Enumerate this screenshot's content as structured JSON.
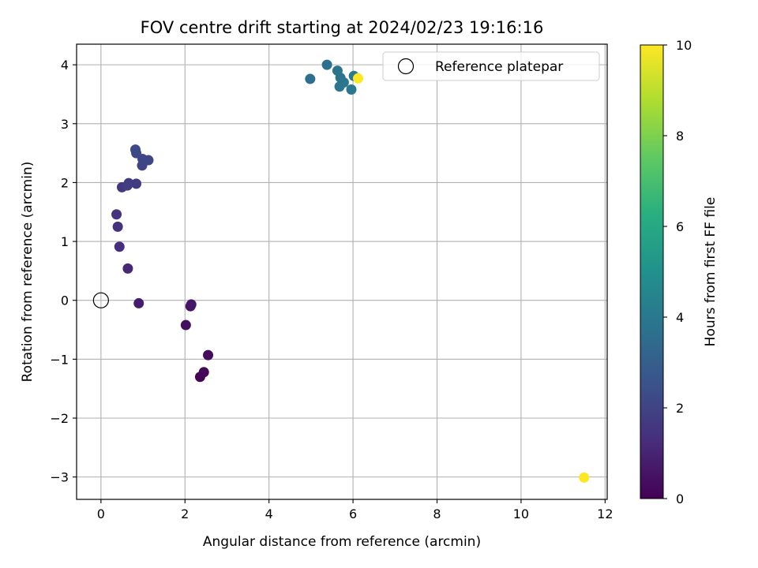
{
  "chart_data": {
    "type": "scatter",
    "title": "FOV centre drift starting at 2024/02/23 19:16:16",
    "xlabel": "Angular distance from reference (arcmin)",
    "ylabel": "Rotation from reference (arcmin)",
    "xlim": [
      -0.58,
      12.05
    ],
    "ylim": [
      -3.38,
      4.35
    ],
    "xticks": [
      "0",
      "2",
      "4",
      "6",
      "8",
      "10",
      "12"
    ],
    "xtick_values": [
      0,
      2,
      4,
      6,
      8,
      10,
      12
    ],
    "yticks": [
      "−3",
      "−2",
      "−1",
      "0",
      "1",
      "2",
      "3",
      "4"
    ],
    "ytick_values": [
      -3,
      -2,
      -1,
      0,
      1,
      2,
      3,
      4
    ],
    "grid": true,
    "legend": {
      "position": "top-right",
      "entries": [
        {
          "label": "Reference platepar",
          "marker": "open-circle"
        }
      ]
    },
    "reference_point": {
      "x": 0,
      "y": 0
    },
    "colorbar": {
      "label": "Hours from first FF file",
      "range": [
        0,
        10
      ],
      "ticks": [
        "0",
        "2",
        "4",
        "6",
        "8",
        "10"
      ],
      "tick_values": [
        0,
        2,
        4,
        6,
        8,
        10
      ],
      "colormap": "viridis"
    },
    "points": [
      {
        "x": 2.36,
        "y": -1.3,
        "hours": 0.1
      },
      {
        "x": 2.45,
        "y": -1.22,
        "hours": 0.2
      },
      {
        "x": 2.55,
        "y": -0.93,
        "hours": 0.3
      },
      {
        "x": 2.02,
        "y": -0.42,
        "hours": 0.4
      },
      {
        "x": 2.13,
        "y": -0.1,
        "hours": 0.5
      },
      {
        "x": 2.15,
        "y": -0.07,
        "hours": 0.6
      },
      {
        "x": 0.9,
        "y": -0.05,
        "hours": 0.8
      },
      {
        "x": 0.64,
        "y": 0.54,
        "hours": 1.1
      },
      {
        "x": 0.44,
        "y": 0.91,
        "hours": 1.3
      },
      {
        "x": 0.4,
        "y": 1.25,
        "hours": 1.4
      },
      {
        "x": 0.37,
        "y": 1.46,
        "hours": 1.5
      },
      {
        "x": 0.5,
        "y": 1.92,
        "hours": 1.6
      },
      {
        "x": 0.66,
        "y": 1.99,
        "hours": 1.7
      },
      {
        "x": 0.84,
        "y": 1.98,
        "hours": 1.8
      },
      {
        "x": 0.63,
        "y": 1.95,
        "hours": 1.8
      },
      {
        "x": 0.98,
        "y": 2.29,
        "hours": 2.0
      },
      {
        "x": 1.13,
        "y": 2.38,
        "hours": 2.1
      },
      {
        "x": 0.99,
        "y": 2.4,
        "hours": 2.1
      },
      {
        "x": 0.84,
        "y": 2.5,
        "hours": 2.2
      },
      {
        "x": 0.82,
        "y": 2.56,
        "hours": 2.2
      },
      {
        "x": 4.98,
        "y": 3.76,
        "hours": 3.6
      },
      {
        "x": 5.38,
        "y": 4.0,
        "hours": 3.7
      },
      {
        "x": 5.63,
        "y": 3.9,
        "hours": 3.8
      },
      {
        "x": 5.7,
        "y": 3.78,
        "hours": 3.8
      },
      {
        "x": 5.78,
        "y": 3.7,
        "hours": 3.9
      },
      {
        "x": 5.68,
        "y": 3.63,
        "hours": 3.9
      },
      {
        "x": 5.96,
        "y": 3.58,
        "hours": 4.0
      },
      {
        "x": 6.02,
        "y": 3.81,
        "hours": 4.0
      },
      {
        "x": 6.12,
        "y": 3.77,
        "hours": 10.0
      },
      {
        "x": 11.5,
        "y": -3.01,
        "hours": 10.0
      }
    ]
  }
}
